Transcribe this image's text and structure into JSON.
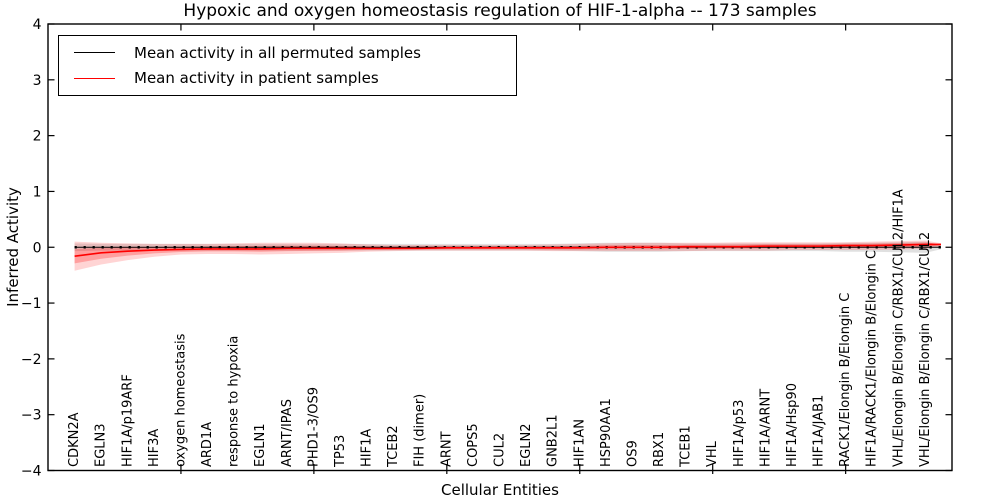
{
  "figure": {
    "title": "Hypoxic and oxygen homeostasis regulation of HIF-1-alpha -- 173 samples",
    "xlabel": "Cellular Entities",
    "ylabel": "Inferred Activity",
    "legend": [
      {
        "label": "Mean activity in all permuted samples",
        "color": "#000000"
      },
      {
        "label": "Mean activity in patient samples",
        "color": "#ff0000"
      }
    ]
  },
  "chart_data": {
    "type": "line",
    "title": "Hypoxic and oxygen homeostasis regulation of HIF-1-alpha -- 173 samples",
    "xlabel": "Cellular Entities",
    "ylabel": "Inferred Activity",
    "ylim": [
      -4,
      4
    ],
    "yticks": [
      -4,
      -3,
      -2,
      -1,
      0,
      1,
      2,
      3,
      4
    ],
    "ytick_labels": [
      "−4",
      "−3",
      "−2",
      "−1",
      "0",
      "1",
      "2",
      "3",
      "4"
    ],
    "xtick_positions": [
      5,
      10,
      15,
      20,
      25,
      30
    ],
    "grid": false,
    "legend_position": "upper left",
    "categories": [
      "CDKN2A",
      "EGLN3",
      "HIF1A/p19ARF",
      "HIF3A",
      "oxygen homeostasis",
      "ARD1A",
      "response to hypoxia",
      "EGLN1",
      "ARNT/IPAS",
      "PHD1-3/OS9",
      "TP53",
      "HIF1A",
      "TCEB2",
      "FIH (dimer)",
      "ARNT",
      "COPS5",
      "CUL2",
      "EGLN2",
      "GNB2L1",
      "HIF1AN",
      "HSP90AA1",
      "OS9",
      "RBX1",
      "TCEB1",
      "VHL",
      "HIF1A/p53",
      "HIF1A/ARNT",
      "HIF1A/Hsp90",
      "HIF1A/JAB1",
      "RACK1/Elongin B/Elongin C",
      "HIF1A/RACK1/Elongin B/Elongin C",
      "VHL/Elongin B/Elongin C/RBX1/CUL2/HIF1A",
      "VHL/Elongin B/Elongin C/RBX1/CUL2"
    ],
    "series": [
      {
        "name": "Mean activity in all permuted samples",
        "color": "#000000",
        "style": "solid-with-dots",
        "values": [
          0,
          0,
          0,
          0,
          0,
          0,
          0,
          0,
          0,
          0,
          0,
          0,
          0,
          0,
          0,
          0,
          0,
          0,
          0,
          0,
          0,
          0,
          0,
          0,
          0,
          0,
          0,
          0,
          0,
          0,
          0,
          0,
          0
        ]
      },
      {
        "name": "Mean activity in patient samples",
        "color": "#ff0000",
        "style": "solid",
        "values": [
          -0.16,
          -0.1,
          -0.07,
          -0.05,
          -0.04,
          -0.03,
          -0.03,
          -0.03,
          -0.02,
          -0.02,
          -0.02,
          -0.02,
          -0.02,
          -0.02,
          -0.01,
          -0.01,
          -0.01,
          -0.01,
          -0.01,
          -0.01,
          0.0,
          0.0,
          0.0,
          0.01,
          0.01,
          0.01,
          0.02,
          0.02,
          0.02,
          0.03,
          0.03,
          0.04,
          0.05
        ]
      }
    ],
    "bands": [
      {
        "name": "permuted samples spread",
        "color": "rgba(0,0,0,0.12)",
        "upper": [
          0.07,
          0.06,
          0.06,
          0.06,
          0.06,
          0.06,
          0.06,
          0.06,
          0.06,
          0.06,
          0.06,
          0.06,
          0.06,
          0.06,
          0.06,
          0.06,
          0.06,
          0.06,
          0.06,
          0.07,
          0.08,
          0.08,
          0.08,
          0.07,
          0.07,
          0.07,
          0.07,
          0.07,
          0.07,
          0.08,
          0.08,
          0.09,
          0.1
        ],
        "lower": [
          -0.07,
          -0.06,
          -0.06,
          -0.06,
          -0.06,
          -0.06,
          -0.06,
          -0.06,
          -0.06,
          -0.06,
          -0.06,
          -0.06,
          -0.06,
          -0.06,
          -0.06,
          -0.06,
          -0.06,
          -0.06,
          -0.06,
          -0.07,
          -0.08,
          -0.08,
          -0.08,
          -0.07,
          -0.07,
          -0.07,
          -0.07,
          -0.07,
          -0.07,
          -0.08,
          -0.08,
          -0.09,
          -0.1
        ]
      },
      {
        "name": "patient samples spread",
        "color": "rgba(255,0,0,0.17)",
        "upper": [
          0.1,
          0.08,
          0.07,
          0.06,
          0.06,
          0.06,
          0.07,
          0.08,
          0.08,
          0.08,
          0.07,
          0.05,
          0.04,
          0.04,
          0.04,
          0.04,
          0.04,
          0.04,
          0.05,
          0.06,
          0.07,
          0.08,
          0.08,
          0.08,
          0.08,
          0.09,
          0.09,
          0.09,
          0.09,
          0.09,
          0.1,
          0.11,
          0.12
        ],
        "lower": [
          -0.42,
          -0.31,
          -0.23,
          -0.17,
          -0.13,
          -0.12,
          -0.12,
          -0.13,
          -0.12,
          -0.11,
          -0.1,
          -0.08,
          -0.07,
          -0.06,
          -0.06,
          -0.06,
          -0.06,
          -0.06,
          -0.07,
          -0.07,
          -0.07,
          -0.07,
          -0.07,
          -0.07,
          -0.06,
          -0.06,
          -0.06,
          -0.05,
          -0.05,
          -0.05,
          -0.05,
          -0.04,
          -0.03
        ]
      }
    ]
  }
}
